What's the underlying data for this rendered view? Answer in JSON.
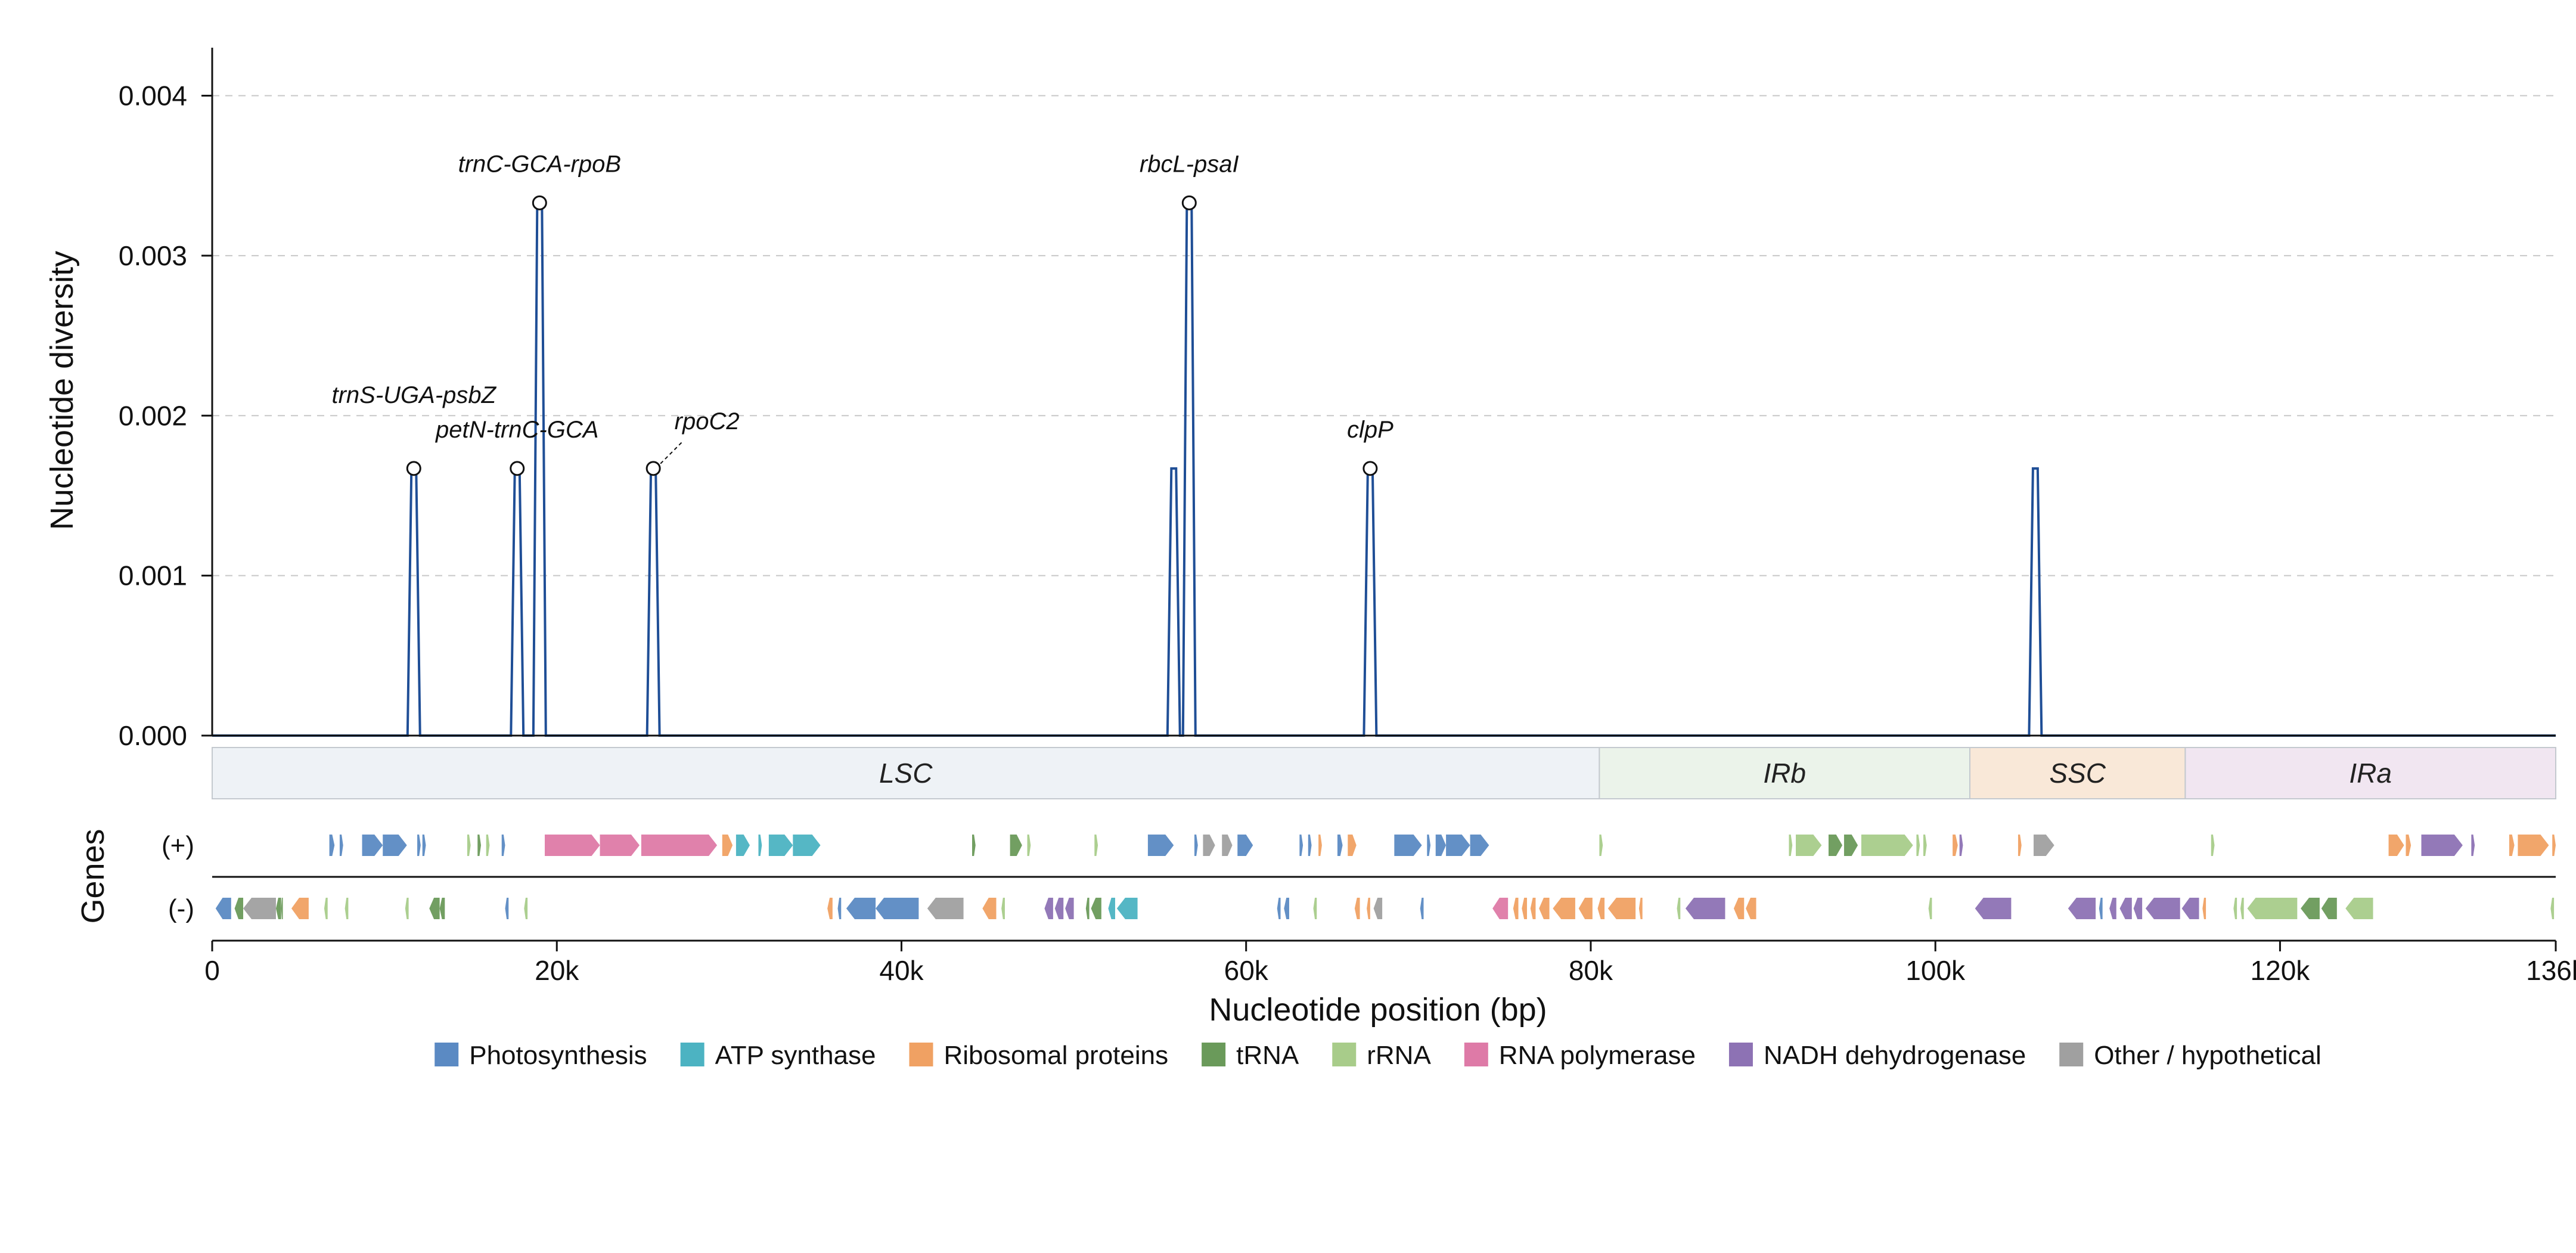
{
  "chart_data": {
    "type": "line",
    "ylabel": "Nucleotide diversity",
    "xlabel": "Nucleotide position (bp)",
    "genes_label": "Genes",
    "xlim": [
      0,
      136000
    ],
    "ylim": [
      0,
      0.0043
    ],
    "y_ticks": [
      0,
      0.001,
      0.002,
      0.003,
      0.004
    ],
    "y_tick_labels": [
      "0.000",
      "0.001",
      "0.002",
      "0.003",
      "0.004"
    ],
    "x_ticks": [
      0,
      20000,
      40000,
      60000,
      80000,
      100000,
      120000,
      136000
    ],
    "x_tick_labels": [
      "0",
      "20k",
      "40k",
      "60k",
      "80k",
      "100k",
      "120k",
      "136k"
    ],
    "grid": "horizontal dashed",
    "line_color": "#1f4e96",
    "peaks": [
      {
        "x": 11700,
        "y": 0.00167,
        "label": "trnS-UGA-psbZ",
        "marker": true
      },
      {
        "x": 17700,
        "y": 0.00167,
        "label": "petN-trnC-GCA",
        "marker": true
      },
      {
        "x": 19000,
        "y": 0.00333,
        "label": "trnC-GCA-rpoB",
        "marker": true
      },
      {
        "x": 25600,
        "y": 0.00167,
        "label": "rpoC2",
        "marker": true
      },
      {
        "x": 55800,
        "y": 0.00167,
        "label": "",
        "marker": false
      },
      {
        "x": 56700,
        "y": 0.00333,
        "label": "rbcL-psaI",
        "marker": true
      },
      {
        "x": 67200,
        "y": 0.00167,
        "label": "clpP",
        "marker": true
      },
      {
        "x": 105800,
        "y": 0.00167,
        "label": "",
        "marker": false
      }
    ],
    "regions": [
      {
        "name": "LSC",
        "start": 0,
        "end": 80500,
        "color": "#eef2f6"
      },
      {
        "name": "IRb",
        "start": 80500,
        "end": 102000,
        "color": "#ebf3ea"
      },
      {
        "name": "SSC",
        "start": 102000,
        "end": 114500,
        "color": "#f9e8d8"
      },
      {
        "name": "IRa",
        "start": 114500,
        "end": 136000,
        "color": "#f1e6f1"
      }
    ],
    "strands": [
      "(+)",
      "(-)"
    ],
    "categories": [
      {
        "name": "Photosynthesis",
        "color": "#5b8ac3"
      },
      {
        "name": "ATP synthase",
        "color": "#4cb3c2"
      },
      {
        "name": "Ribosomal proteins",
        "color": "#f0a163"
      },
      {
        "name": "tRNA",
        "color": "#6a9a5a"
      },
      {
        "name": "rRNA",
        "color": "#a8cc8a"
      },
      {
        "name": "RNA polymerase",
        "color": "#de7aa7"
      },
      {
        "name": "NADH dehydrogenase",
        "color": "#8d72b4"
      },
      {
        "name": "Other / hypothetical",
        "color": "#a0a0a0"
      }
    ],
    "genes": [
      {
        "s": 6800,
        "e": 7100,
        "st": "+",
        "c": 0
      },
      {
        "s": 7400,
        "e": 7600,
        "st": "+",
        "c": 0
      },
      {
        "s": 8700,
        "e": 9900,
        "st": "+",
        "c": 0
      },
      {
        "s": 9900,
        "e": 11300,
        "st": "+",
        "c": 0
      },
      {
        "s": 11900,
        "e": 12100,
        "st": "+",
        "c": 0
      },
      {
        "s": 12200,
        "e": 12400,
        "st": "+",
        "c": 0
      },
      {
        "s": 14800,
        "e": 15000,
        "st": "+",
        "c": 4
      },
      {
        "s": 15400,
        "e": 15600,
        "st": "+",
        "c": 3
      },
      {
        "s": 15900,
        "e": 16100,
        "st": "+",
        "c": 4
      },
      {
        "s": 16800,
        "e": 17000,
        "st": "+",
        "c": 0
      },
      {
        "s": 19300,
        "e": 22500,
        "st": "+",
        "c": 5
      },
      {
        "s": 22500,
        "e": 24800,
        "st": "+",
        "c": 5
      },
      {
        "s": 24900,
        "e": 29300,
        "st": "+",
        "c": 5
      },
      {
        "s": 29600,
        "e": 30200,
        "st": "+",
        "c": 2
      },
      {
        "s": 30400,
        "e": 31200,
        "st": "+",
        "c": 1
      },
      {
        "s": 31700,
        "e": 31900,
        "st": "+",
        "c": 1
      },
      {
        "s": 32300,
        "e": 33700,
        "st": "+",
        "c": 1
      },
      {
        "s": 33700,
        "e": 35300,
        "st": "+",
        "c": 1
      },
      {
        "s": 44100,
        "e": 44300,
        "st": "+",
        "c": 3
      },
      {
        "s": 46300,
        "e": 47000,
        "st": "+",
        "c": 3
      },
      {
        "s": 47300,
        "e": 47500,
        "st": "+",
        "c": 4
      },
      {
        "s": 51200,
        "e": 51400,
        "st": "+",
        "c": 4
      },
      {
        "s": 54300,
        "e": 55800,
        "st": "+",
        "c": 0
      },
      {
        "s": 57000,
        "e": 57200,
        "st": "+",
        "c": 0
      },
      {
        "s": 57500,
        "e": 58200,
        "st": "+",
        "c": 7
      },
      {
        "s": 58600,
        "e": 59200,
        "st": "+",
        "c": 7
      },
      {
        "s": 59500,
        "e": 60400,
        "st": "+",
        "c": 0
      },
      {
        "s": 63100,
        "e": 63300,
        "st": "+",
        "c": 0
      },
      {
        "s": 63600,
        "e": 63800,
        "st": "+",
        "c": 0
      },
      {
        "s": 64200,
        "e": 64400,
        "st": "+",
        "c": 2
      },
      {
        "s": 65300,
        "e": 65600,
        "st": "+",
        "c": 0
      },
      {
        "s": 65900,
        "e": 66400,
        "st": "+",
        "c": 2
      },
      {
        "s": 68600,
        "e": 70200,
        "st": "+",
        "c": 0
      },
      {
        "s": 70500,
        "e": 70700,
        "st": "+",
        "c": 0
      },
      {
        "s": 71000,
        "e": 71600,
        "st": "+",
        "c": 0
      },
      {
        "s": 71600,
        "e": 73000,
        "st": "+",
        "c": 0
      },
      {
        "s": 73000,
        "e": 74100,
        "st": "+",
        "c": 0
      },
      {
        "s": 80500,
        "e": 80700,
        "st": "+",
        "c": 4
      },
      {
        "s": 91500,
        "e": 91700,
        "st": "+",
        "c": 4
      },
      {
        "s": 91900,
        "e": 93400,
        "st": "+",
        "c": 4
      },
      {
        "s": 93800,
        "e": 94600,
        "st": "+",
        "c": 3
      },
      {
        "s": 94700,
        "e": 95500,
        "st": "+",
        "c": 3
      },
      {
        "s": 95700,
        "e": 98700,
        "st": "+",
        "c": 4
      },
      {
        "s": 98900,
        "e": 99100,
        "st": "+",
        "c": 4
      },
      {
        "s": 99300,
        "e": 99500,
        "st": "+",
        "c": 4
      },
      {
        "s": 101000,
        "e": 101300,
        "st": "+",
        "c": 2
      },
      {
        "s": 101400,
        "e": 101600,
        "st": "+",
        "c": 6
      },
      {
        "s": 104800,
        "e": 105000,
        "st": "+",
        "c": 2
      },
      {
        "s": 105700,
        "e": 106900,
        "st": "+",
        "c": 7
      },
      {
        "s": 116000,
        "e": 116200,
        "st": "+",
        "c": 4
      },
      {
        "s": 126300,
        "e": 127200,
        "st": "+",
        "c": 2
      },
      {
        "s": 127300,
        "e": 127600,
        "st": "+",
        "c": 2
      },
      {
        "s": 128200,
        "e": 130600,
        "st": "+",
        "c": 6
      },
      {
        "s": 131100,
        "e": 131300,
        "st": "+",
        "c": 6
      },
      {
        "s": 133300,
        "e": 133600,
        "st": "+",
        "c": 2
      },
      {
        "s": 133800,
        "e": 135600,
        "st": "+",
        "c": 2
      },
      {
        "s": 135800,
        "e": 136000,
        "st": "+",
        "c": 2
      },
      {
        "s": 200,
        "e": 1100,
        "st": "-",
        "c": 0
      },
      {
        "s": 1300,
        "e": 1800,
        "st": "-",
        "c": 3
      },
      {
        "s": 1800,
        "e": 3700,
        "st": "-",
        "c": 7
      },
      {
        "s": 3700,
        "e": 4000,
        "st": "-",
        "c": 3
      },
      {
        "s": 4000,
        "e": 4100,
        "st": "-",
        "c": 3
      },
      {
        "s": 4600,
        "e": 5600,
        "st": "-",
        "c": 2
      },
      {
        "s": 6500,
        "e": 6700,
        "st": "-",
        "c": 4
      },
      {
        "s": 7700,
        "e": 7900,
        "st": "-",
        "c": 4
      },
      {
        "s": 11200,
        "e": 11400,
        "st": "-",
        "c": 4
      },
      {
        "s": 12600,
        "e": 13200,
        "st": "-",
        "c": 3
      },
      {
        "s": 13200,
        "e": 13500,
        "st": "-",
        "c": 3
      },
      {
        "s": 17000,
        "e": 17200,
        "st": "-",
        "c": 0
      },
      {
        "s": 18100,
        "e": 18300,
        "st": "-",
        "c": 4
      },
      {
        "s": 35700,
        "e": 36000,
        "st": "-",
        "c": 2
      },
      {
        "s": 36300,
        "e": 36500,
        "st": "-",
        "c": 0
      },
      {
        "s": 36800,
        "e": 38500,
        "st": "-",
        "c": 0
      },
      {
        "s": 38500,
        "e": 41000,
        "st": "-",
        "c": 0
      },
      {
        "s": 41500,
        "e": 43600,
        "st": "-",
        "c": 7
      },
      {
        "s": 44700,
        "e": 45500,
        "st": "-",
        "c": 2
      },
      {
        "s": 45800,
        "e": 46000,
        "st": "-",
        "c": 4
      },
      {
        "s": 48300,
        "e": 48800,
        "st": "-",
        "c": 6
      },
      {
        "s": 48900,
        "e": 49400,
        "st": "-",
        "c": 6
      },
      {
        "s": 49500,
        "e": 50000,
        "st": "-",
        "c": 6
      },
      {
        "s": 50700,
        "e": 50900,
        "st": "-",
        "c": 3
      },
      {
        "s": 51000,
        "e": 51600,
        "st": "-",
        "c": 3
      },
      {
        "s": 52000,
        "e": 52400,
        "st": "-",
        "c": 1
      },
      {
        "s": 52500,
        "e": 53700,
        "st": "-",
        "c": 1
      },
      {
        "s": 61800,
        "e": 62000,
        "st": "-",
        "c": 0
      },
      {
        "s": 62200,
        "e": 62500,
        "st": "-",
        "c": 0
      },
      {
        "s": 63900,
        "e": 64100,
        "st": "-",
        "c": 4
      },
      {
        "s": 66300,
        "e": 66600,
        "st": "-",
        "c": 2
      },
      {
        "s": 67000,
        "e": 67200,
        "st": "-",
        "c": 2
      },
      {
        "s": 67400,
        "e": 67900,
        "st": "-",
        "c": 7
      },
      {
        "s": 70100,
        "e": 70300,
        "st": "-",
        "c": 0
      },
      {
        "s": 74300,
        "e": 75200,
        "st": "-",
        "c": 5
      },
      {
        "s": 75500,
        "e": 75800,
        "st": "-",
        "c": 2
      },
      {
        "s": 76000,
        "e": 76300,
        "st": "-",
        "c": 2
      },
      {
        "s": 76500,
        "e": 76800,
        "st": "-",
        "c": 2
      },
      {
        "s": 77000,
        "e": 77600,
        "st": "-",
        "c": 2
      },
      {
        "s": 77800,
        "e": 79100,
        "st": "-",
        "c": 2
      },
      {
        "s": 79300,
        "e": 80100,
        "st": "-",
        "c": 2
      },
      {
        "s": 80400,
        "e": 80800,
        "st": "-",
        "c": 2
      },
      {
        "s": 81000,
        "e": 82600,
        "st": "-",
        "c": 2
      },
      {
        "s": 82800,
        "e": 83000,
        "st": "-",
        "c": 2
      },
      {
        "s": 85000,
        "e": 85200,
        "st": "-",
        "c": 4
      },
      {
        "s": 85500,
        "e": 87800,
        "st": "-",
        "c": 6
      },
      {
        "s": 88300,
        "e": 88900,
        "st": "-",
        "c": 2
      },
      {
        "s": 89000,
        "e": 89600,
        "st": "-",
        "c": 2
      },
      {
        "s": 99600,
        "e": 99800,
        "st": "-",
        "c": 4
      },
      {
        "s": 102300,
        "e": 104400,
        "st": "-",
        "c": 6
      },
      {
        "s": 107700,
        "e": 109300,
        "st": "-",
        "c": 6
      },
      {
        "s": 109500,
        "e": 109700,
        "st": "-",
        "c": 0
      },
      {
        "s": 110100,
        "e": 110500,
        "st": "-",
        "c": 6
      },
      {
        "s": 110700,
        "e": 111400,
        "st": "-",
        "c": 6
      },
      {
        "s": 111500,
        "e": 112000,
        "st": "-",
        "c": 6
      },
      {
        "s": 112200,
        "e": 114200,
        "st": "-",
        "c": 6
      },
      {
        "s": 114300,
        "e": 115300,
        "st": "-",
        "c": 6
      },
      {
        "s": 115500,
        "e": 115700,
        "st": "-",
        "c": 2
      },
      {
        "s": 117300,
        "e": 117500,
        "st": "-",
        "c": 4
      },
      {
        "s": 117700,
        "e": 117900,
        "st": "-",
        "c": 4
      },
      {
        "s": 118100,
        "e": 121000,
        "st": "-",
        "c": 4
      },
      {
        "s": 121200,
        "e": 122300,
        "st": "-",
        "c": 3
      },
      {
        "s": 122400,
        "e": 123300,
        "st": "-",
        "c": 3
      },
      {
        "s": 123800,
        "e": 125400,
        "st": "-",
        "c": 4
      },
      {
        "s": 135700,
        "e": 135900,
        "st": "-",
        "c": 4
      }
    ]
  }
}
